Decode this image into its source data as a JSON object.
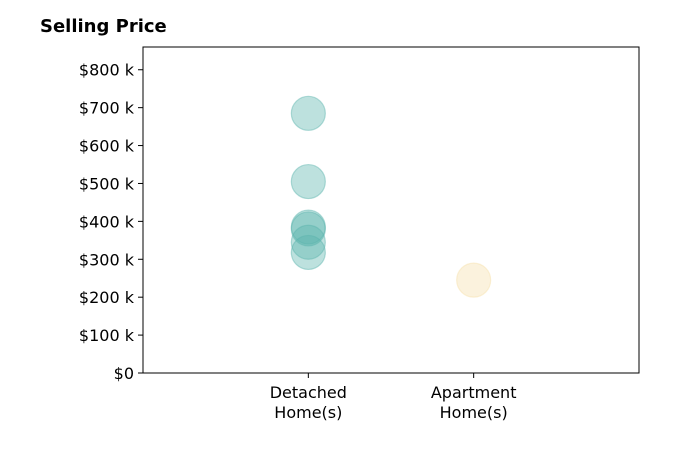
{
  "chart_data": {
    "type": "scatter",
    "title": "Selling Price",
    "categories": [
      "Detached\nHome(s)",
      "Apartment\nHome(s)"
    ],
    "y_ticks": [
      "$0",
      "$100 k",
      "$200 k",
      "$300 k",
      "$400 k",
      "$500 k",
      "$600 k",
      "$700 k",
      "$800 k"
    ],
    "y_tick_values": [
      0,
      100000,
      200000,
      300000,
      400000,
      500000,
      600000,
      700000,
      800000
    ],
    "ylim": [
      0,
      860000
    ],
    "xlim": [
      -1,
      2
    ],
    "grid": false,
    "series": [
      {
        "category_index": 0,
        "color": "#5ab4ac",
        "values": [
          685000,
          505000,
          385000,
          380000,
          345000,
          318000
        ]
      },
      {
        "category_index": 1,
        "color": "#f6dfa9",
        "values": [
          245000
        ]
      }
    ]
  }
}
